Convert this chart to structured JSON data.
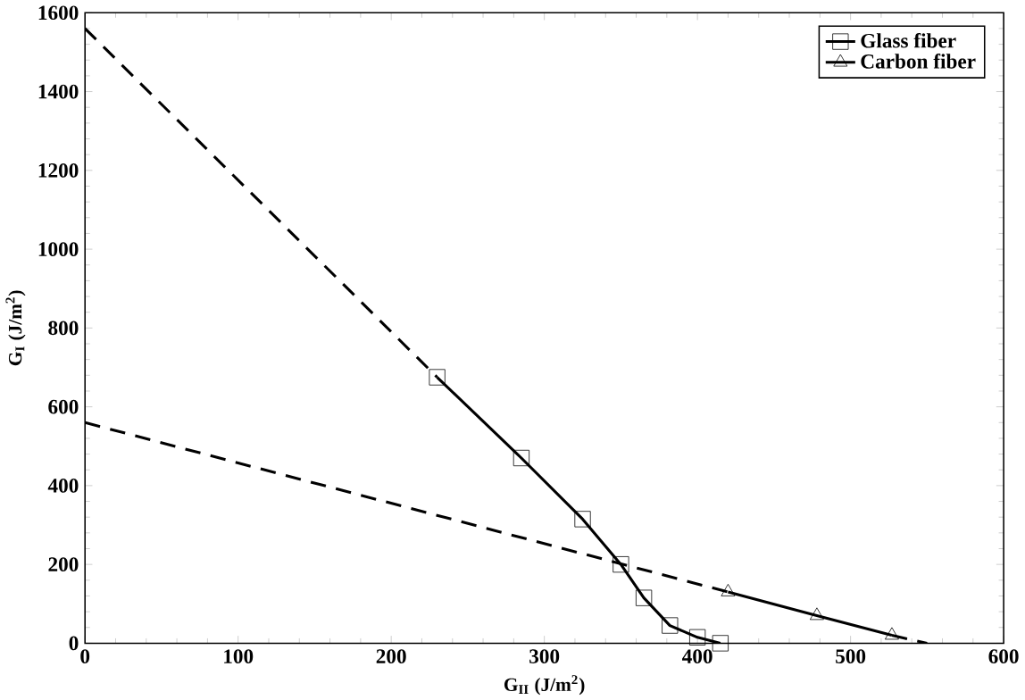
{
  "chart_data": {
    "type": "line",
    "xlabel": "G$_{II}$  (J/m$^{2}$)",
    "ylabel": "G$_{I}$  (J/m$^{2}$)",
    "xlim": [
      0,
      600
    ],
    "xticks": [
      0,
      100,
      200,
      300,
      400,
      500,
      600
    ],
    "ylim": [
      0,
      1600
    ],
    "yticks": [
      0,
      200,
      400,
      600,
      800,
      1000,
      1200,
      1400,
      1600
    ],
    "legend": "top right",
    "grid": false,
    "series": [
      {
        "name": "Glass fiber",
        "color": "#000000",
        "marker": "square",
        "line_style": "solid",
        "x": [
          230,
          285,
          325,
          350,
          365,
          382,
          400,
          415
        ],
        "values": [
          675,
          470,
          315,
          200,
          115,
          45,
          15,
          0
        ]
      },
      {
        "name": "Carbon fiber",
        "color": "#000000",
        "marker": "triangle",
        "line_style": "solid",
        "x": [
          420,
          478,
          527
        ],
        "values": [
          130,
          70,
          20
        ]
      },
      {
        "color": "#000000",
        "marker": "none",
        "line_style": "dashed",
        "x": [
          0,
          230
        ],
        "values": [
          1560,
          675
        ]
      },
      {
        "color": "#000000",
        "marker": "none",
        "line_style": "dashed",
        "x": [
          0,
          420
        ],
        "values": [
          560,
          130
        ]
      },
      {
        "color": "#000000",
        "marker": "none",
        "line_style": "dashed",
        "x": [
          527,
          550
        ],
        "values": [
          20,
          0
        ]
      }
    ]
  }
}
